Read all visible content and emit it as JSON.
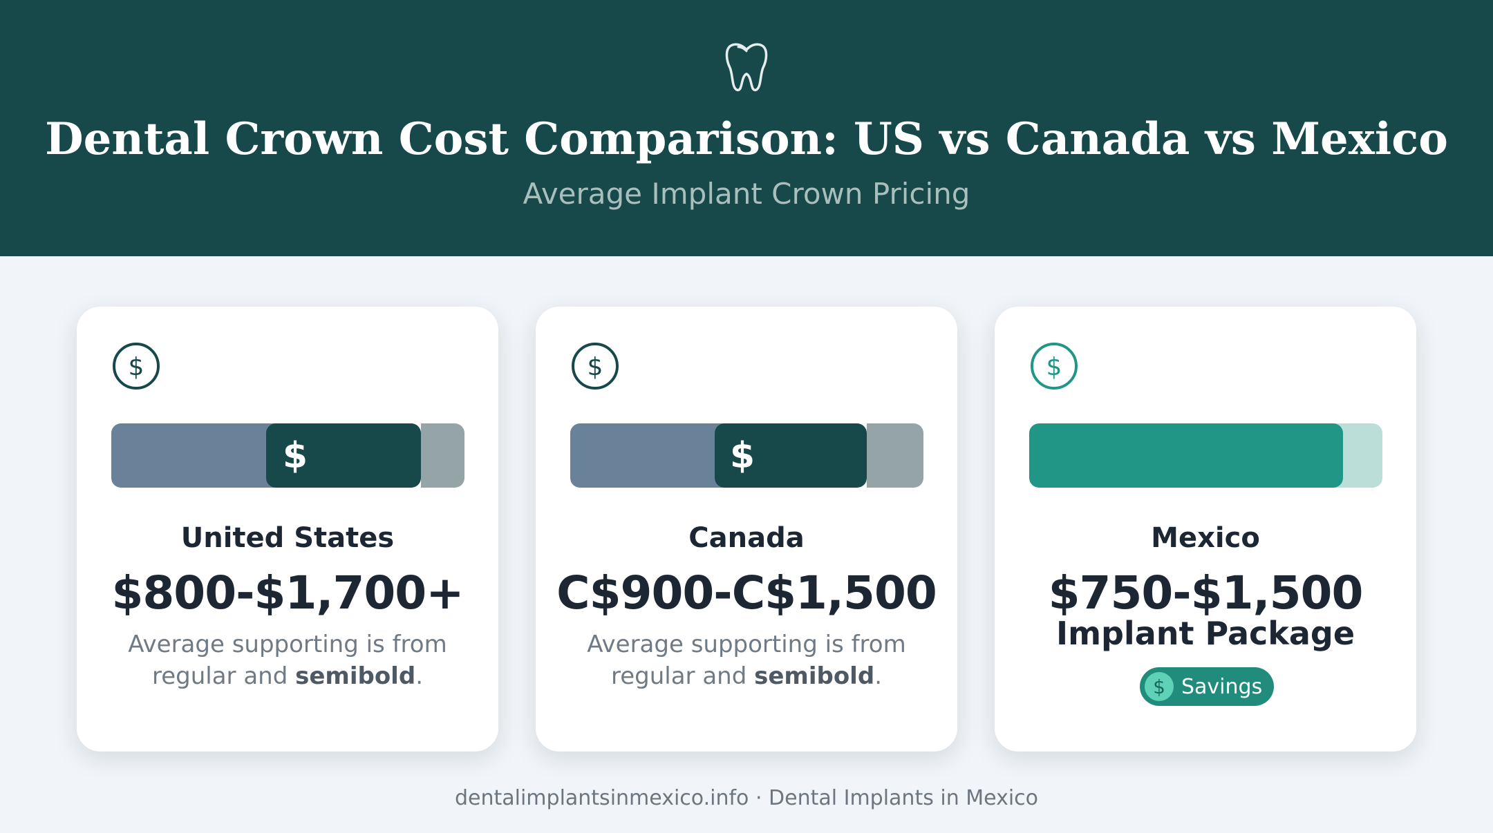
{
  "header": {
    "title": "Dental Crown Cost Comparison: US vs Canada vs Mexico",
    "subtitle": "Average Implant Crown Pricing",
    "icon": "tooth-icon"
  },
  "colors": {
    "header_bg": "#17484a",
    "bar_light": "#6a8299",
    "bar_dark": "#17484a",
    "bar_tail": "#95a4a6",
    "mexico_bar": "#219687",
    "mexico_tail": "#bbded9",
    "badge": "#218c7c"
  },
  "cards": [
    {
      "icon": "dollar-circle-icon",
      "bar_symbol": "$",
      "country": "United States",
      "price": "$800-$1,700+",
      "desc_line1": "Average supporting is from",
      "desc_line2_pre": "regular and ",
      "desc_line2_bold": "semibold",
      "desc_line2_post": "."
    },
    {
      "icon": "dollar-circle-icon",
      "bar_symbol": "$",
      "country": "Canada",
      "price": "C$900-C$1,500",
      "desc_line1": "Average supporting is from",
      "desc_line2_pre": "regular and ",
      "desc_line2_bold": "semibold",
      "desc_line2_post": "."
    },
    {
      "icon": "dollar-circle-icon",
      "country": "Mexico",
      "price": "$750-$1,500",
      "package": "Implant Package",
      "badge_icon": "dollar-circle-icon",
      "badge_label": "Savings"
    }
  ],
  "footer": {
    "text": "dentalimplantsinmexico.info · Dental Implants in Mexico"
  }
}
